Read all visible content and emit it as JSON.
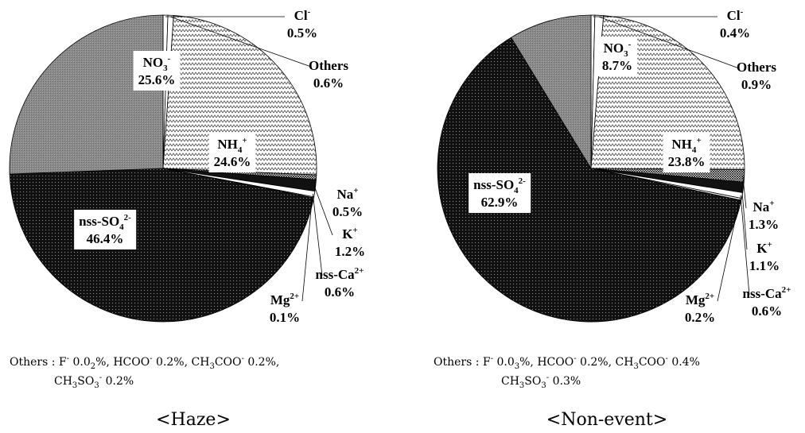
{
  "colors": {
    "slice_fill": "#ffffff",
    "stroke": "#000000",
    "box_fill": "#ffffff",
    "black_fill": "#111111",
    "gray_fill": "#8c8c8c"
  },
  "chart_data": [
    {
      "type": "pie",
      "caption": "<Haze>",
      "title": "",
      "slices": [
        {
          "name": "Cl-",
          "value": 0.5,
          "pattern": "white",
          "text": {
            "main": "Cl",
            "sup": "-",
            "pct": "0.5%"
          }
        },
        {
          "name": "Others",
          "value": 0.6,
          "pattern": "white",
          "text": {
            "main": "Others",
            "pct": "0.6%"
          }
        },
        {
          "name": "NH4+",
          "value": 24.6,
          "pattern": "zigzag",
          "text": {
            "main": "NH",
            "sub": "4",
            "sup": "+",
            "pct": "24.6%"
          }
        },
        {
          "name": "Na+",
          "value": 0.5,
          "pattern": "grid",
          "text": {
            "main": "Na",
            "sup": "+",
            "pct": "0.5%"
          }
        },
        {
          "name": "K+",
          "value": 1.2,
          "pattern": "black",
          "text": {
            "main": "K",
            "sup": "+",
            "pct": "1.2%"
          }
        },
        {
          "name": "nss-Ca2+",
          "value": 0.6,
          "pattern": "white",
          "text": {
            "main": "nss-Ca",
            "sup": "2+",
            "pct": "0.6%"
          }
        },
        {
          "name": "Mg2+",
          "value": 0.1,
          "pattern": "white",
          "text": {
            "main": "Mg",
            "sup": "2+",
            "pct": "0.1%"
          }
        },
        {
          "name": "nss-SO42-",
          "value": 46.4,
          "pattern": "dots",
          "text": {
            "main": "nss-SO",
            "sub": "4",
            "sup": "2-",
            "pct": "46.4%"
          }
        },
        {
          "name": "NO3-",
          "value": 25.6,
          "pattern": "gray",
          "text": {
            "main": "NO",
            "sub": "3",
            "sup": "-",
            "pct": "25.6%"
          }
        }
      ],
      "note": {
        "prefix": "Others : ",
        "items": [
          {
            "main": "F",
            "sup": "-",
            "rest": " 0.0",
            "sub": "2",
            "tail": "%, "
          },
          {
            "main": "HCOO",
            "sup": "-",
            "rest": " 0.2%, "
          },
          {
            "main": "CH",
            "sub": "3",
            "mid": "COO",
            "sup": "-",
            "rest": " 0.2%,"
          },
          {
            "main": "CH",
            "sub": "3",
            "mid": "SO",
            "sub2": "3",
            "sup": "-",
            "rest": " 0.2%"
          }
        ]
      }
    },
    {
      "type": "pie",
      "caption": "<Non-event>",
      "title": "",
      "slices": [
        {
          "name": "Cl-",
          "value": 0.4,
          "pattern": "white",
          "text": {
            "main": "Cl",
            "sup": "-",
            "pct": "0.4%"
          }
        },
        {
          "name": "Others",
          "value": 0.9,
          "pattern": "white",
          "text": {
            "main": "Others",
            "pct": "0.9%"
          }
        },
        {
          "name": "NH4+",
          "value": 23.8,
          "pattern": "zigzag",
          "text": {
            "main": "NH",
            "sub": "4",
            "sup": "+",
            "pct": "23.8%"
          }
        },
        {
          "name": "Na+",
          "value": 1.3,
          "pattern": "grid",
          "text": {
            "main": "Na",
            "sup": "+",
            "pct": "1.3%"
          }
        },
        {
          "name": "K+",
          "value": 1.1,
          "pattern": "black",
          "text": {
            "main": "K",
            "sup": "+",
            "pct": "1.1%"
          }
        },
        {
          "name": "nss-Ca2+",
          "value": 0.6,
          "pattern": "white",
          "text": {
            "main": "nss-Ca",
            "sup": "2+",
            "pct": "0.6%"
          }
        },
        {
          "name": "Mg2+",
          "value": 0.2,
          "pattern": "white",
          "text": {
            "main": "Mg",
            "sup": "2+",
            "pct": "0.2%"
          }
        },
        {
          "name": "nss-SO42-",
          "value": 62.9,
          "pattern": "dots",
          "text": {
            "main": "nss-SO",
            "sub": "4",
            "sup": "2-",
            "pct": "62.9%"
          }
        },
        {
          "name": "NO3-",
          "value": 8.7,
          "pattern": "gray",
          "text": {
            "main": "NO",
            "sub": "3",
            "sup": "-",
            "pct": "8.7%"
          }
        }
      ],
      "note": {
        "prefix": "Others : ",
        "items": [
          {
            "main": "F",
            "sup": "-",
            "rest": " 0.0",
            "sub": "3",
            "tail": "%, "
          },
          {
            "main": "HCOO",
            "sup": "-",
            "rest": " 0.2%,  "
          },
          {
            "main": "CH",
            "sub": "3",
            "mid": "COO",
            "sup": "-",
            "rest": " 0.4%"
          },
          {
            "main": "CH",
            "sub": "3",
            "mid": "SO",
            "sub2": "3",
            "sup": "-",
            "rest": " 0.3%"
          }
        ]
      }
    }
  ]
}
